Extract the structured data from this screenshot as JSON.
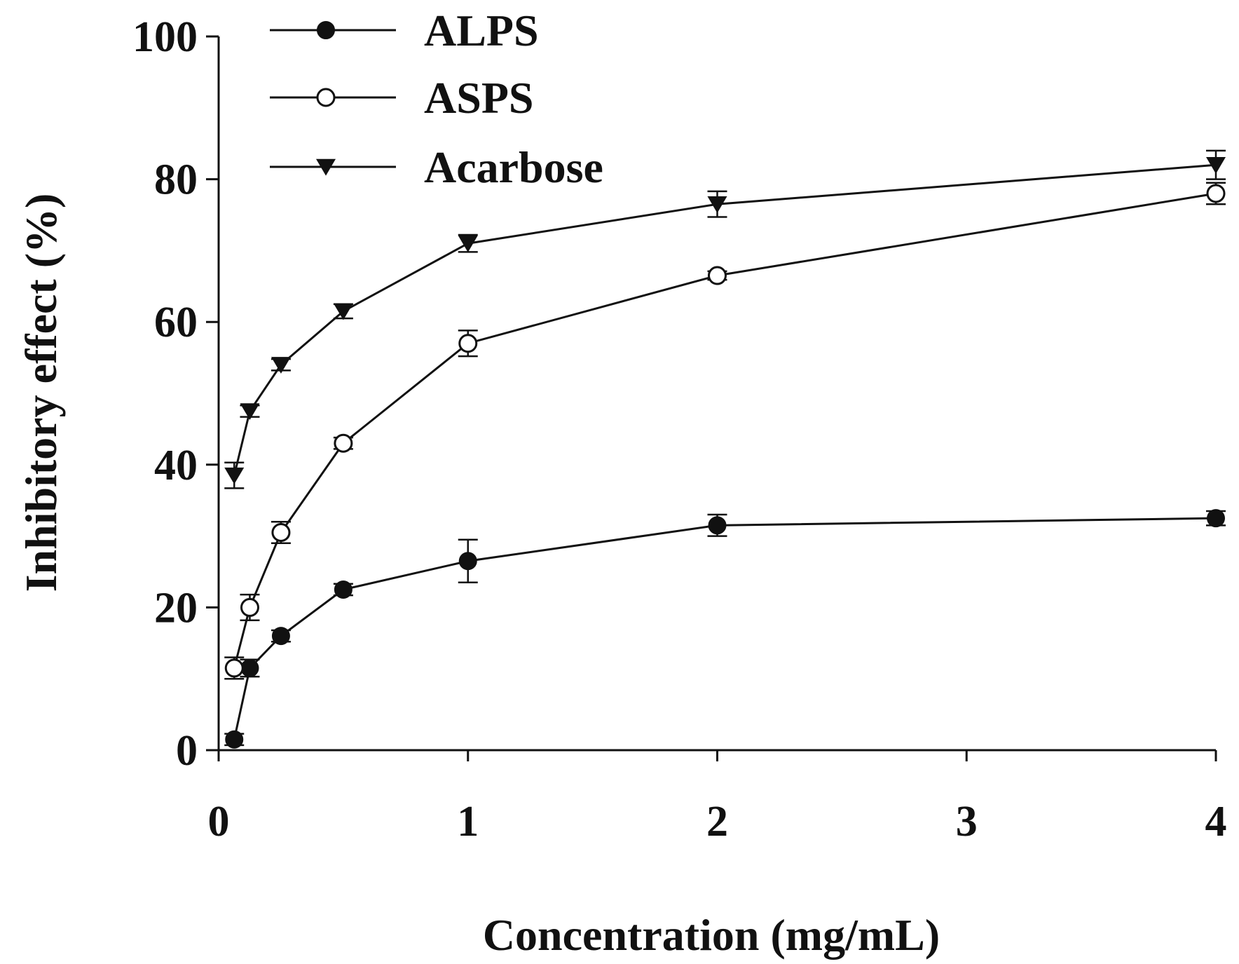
{
  "chart_data": {
    "type": "line",
    "xlabel": "Concentration (mg/mL)",
    "ylabel": "Inhibitory effect (%)",
    "xlim": [
      0,
      4
    ],
    "ylim": [
      0,
      100
    ],
    "xticks": [
      0,
      1,
      2,
      3,
      4
    ],
    "yticks": [
      0,
      20,
      40,
      60,
      80,
      100
    ],
    "grid": false,
    "legend_position": "top-left",
    "series": [
      {
        "name": "ALPS",
        "marker": "filled-circle",
        "x": [
          0.0625,
          0.125,
          0.25,
          0.5,
          1,
          2,
          4
        ],
        "values": [
          1.5,
          11.5,
          16,
          22.5,
          26.5,
          31.5,
          32.5
        ],
        "errors": [
          0.8,
          1.2,
          0.8,
          0.8,
          3.0,
          1.5,
          1.0
        ]
      },
      {
        "name": "ASPS",
        "marker": "open-circle",
        "x": [
          0.0625,
          0.125,
          0.25,
          0.5,
          1,
          2,
          4
        ],
        "values": [
          11.5,
          20,
          30.5,
          43,
          57,
          66.5,
          78
        ],
        "errors": [
          1.5,
          1.8,
          1.5,
          0.8,
          1.8,
          0.6,
          1.5
        ]
      },
      {
        "name": "Acarbose",
        "marker": "filled-triangle-down",
        "x": [
          0.0625,
          0.125,
          0.25,
          0.5,
          1,
          2,
          4
        ],
        "values": [
          38.5,
          47.5,
          54,
          61.5,
          71,
          76.5,
          82
        ],
        "errors": [
          1.8,
          0.8,
          0.8,
          1.0,
          1.2,
          1.8,
          2.0
        ]
      }
    ]
  }
}
